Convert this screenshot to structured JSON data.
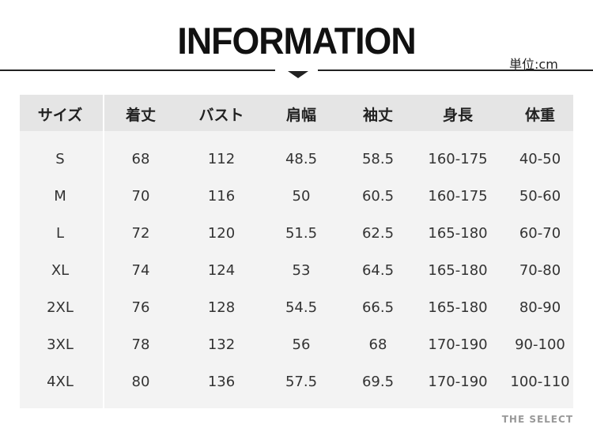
{
  "title": "INFORMATION",
  "unit": "単位:cm",
  "headers": [
    "サイズ",
    "着丈",
    "バスト",
    "肩幅",
    "袖丈",
    "身長",
    "体重"
  ],
  "rows": [
    [
      "S",
      "68",
      "112",
      "48.5",
      "58.5",
      "160-175",
      "40-50"
    ],
    [
      "M",
      "70",
      "116",
      "50",
      "60.5",
      "160-175",
      "50-60"
    ],
    [
      "L",
      "72",
      "120",
      "51.5",
      "62.5",
      "165-180",
      "60-70"
    ],
    [
      "XL",
      "74",
      "124",
      "53",
      "64.5",
      "165-180",
      "70-80"
    ],
    [
      "2XL",
      "76",
      "128",
      "54.5",
      "66.5",
      "165-180",
      "80-90"
    ],
    [
      "3XL",
      "78",
      "132",
      "56",
      "68",
      "170-190",
      "90-100"
    ],
    [
      "4XL",
      "80",
      "136",
      "57.5",
      "69.5",
      "170-190",
      "100-110"
    ]
  ],
  "watermark": "THE SELECT"
}
